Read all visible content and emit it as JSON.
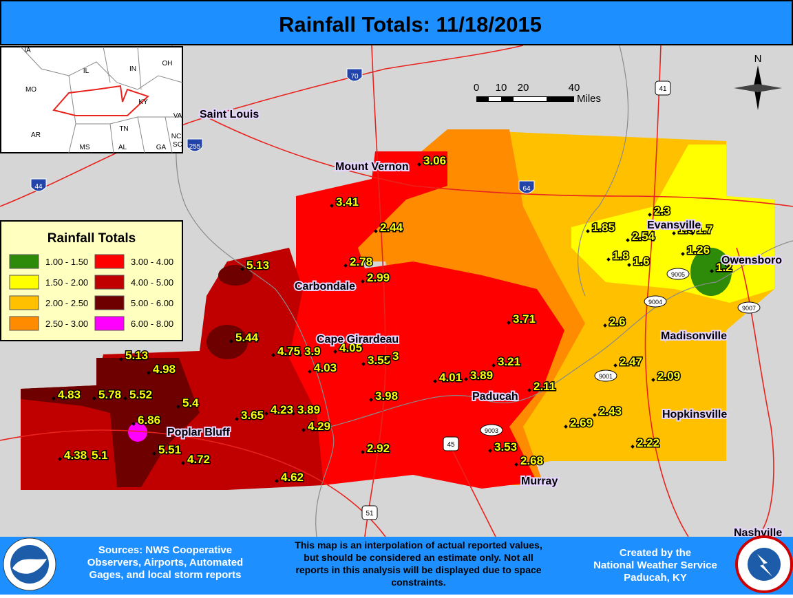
{
  "title": "Rainfall Totals: 11/18/2015",
  "legend": {
    "title": "Rainfall Totals",
    "items": [
      {
        "label": "1.00 - 1.50",
        "color": "#2e8b0a"
      },
      {
        "label": "1.50 - 2.00",
        "color": "#ffff00"
      },
      {
        "label": "2.00 - 2.50",
        "color": "#ffc000"
      },
      {
        "label": "2.50 - 3.00",
        "color": "#ff8c00"
      },
      {
        "label": "3.00 - 4.00",
        "color": "#ff0000"
      },
      {
        "label": "4.00 - 5.00",
        "color": "#c00000"
      },
      {
        "label": "5.00 - 6.00",
        "color": "#6e0000"
      },
      {
        "label": "6.00 - 8.00",
        "color": "#ff00ff"
      }
    ]
  },
  "scale_bar": {
    "ticks": [
      0,
      10,
      20,
      40
    ],
    "unit": "Miles"
  },
  "north_arrow": "N",
  "inset_labels": [
    "IA",
    "IL",
    "IN",
    "OH",
    "MO",
    "KY",
    "VA",
    "AR",
    "TN",
    "NC",
    "MS",
    "AL",
    "GA",
    "SC"
  ],
  "cities": [
    "Saint Louis",
    "Mount Vernon",
    "Carbondale",
    "Cape Girardeau",
    "Paducah",
    "Poplar Bluff",
    "Murray",
    "Evansville",
    "Owensboro",
    "Madisonville",
    "Hopkinsville",
    "Nashville"
  ],
  "rainfall_reports": [
    3.06,
    3.41,
    2.44,
    2.78,
    2.99,
    5.13,
    1.85,
    2.3,
    2.54,
    1.5,
    1.7,
    1.8,
    1.6,
    1.26,
    1.2,
    3.71,
    2.6,
    5.44,
    5.13,
    4.98,
    4.75,
    3.9,
    4.05,
    4.03,
    3.55,
    3,
    3.21,
    2.47,
    2.09,
    4.83,
    5.78,
    5.52,
    5.4,
    4.01,
    3.89,
    3.98,
    2.11,
    6.86,
    3.65,
    4.23,
    3.89,
    4.29,
    2.43,
    2.69,
    5.51,
    4.72,
    4.38,
    5.1,
    2.92,
    3.53,
    2.68,
    2.22,
    4.62
  ],
  "highway_shields": [
    "70",
    "41",
    "255",
    "44",
    "64",
    "9005",
    "9004",
    "9007",
    "9001",
    "9003",
    "45",
    "51"
  ],
  "footer": {
    "sources": [
      "Sources: NWS Cooperative",
      "Observers, Airports, Automated",
      "Gages, and local storm reports"
    ],
    "disclaimer": [
      "This map is an interpolation of actual reported values,",
      "but should be considered an estimate only. Not all",
      "reports in this analysis will be displayed due to space",
      "constraints."
    ],
    "credit": [
      "Created by the",
      "National Weather Service",
      "Paducah, KY"
    ]
  }
}
